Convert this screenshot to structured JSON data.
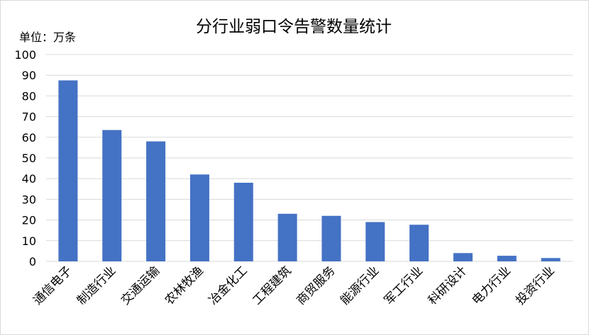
{
  "chart_data": {
    "type": "bar",
    "title": "分行业弱口令告警数量统计",
    "unit_label": "单位：万条",
    "categories": [
      "通信电子",
      "制造行业",
      "交通运输",
      "农林牧渔",
      "冶金化工",
      "工程建筑",
      "商贸服务",
      "能源行业",
      "军工行业",
      "科研设计",
      "电力行业",
      "投资行业"
    ],
    "values": [
      87.5,
      63.5,
      58,
      42,
      38,
      23,
      22,
      19,
      17.7,
      4,
      2.7,
      1.6
    ],
    "ylim": [
      0,
      100
    ],
    "yticks": [
      0,
      10,
      20,
      30,
      40,
      50,
      60,
      70,
      80,
      90,
      100
    ],
    "grid": true,
    "legend": "none",
    "bar_color": "#4472C4",
    "grid_color": "#d9d9d9"
  }
}
